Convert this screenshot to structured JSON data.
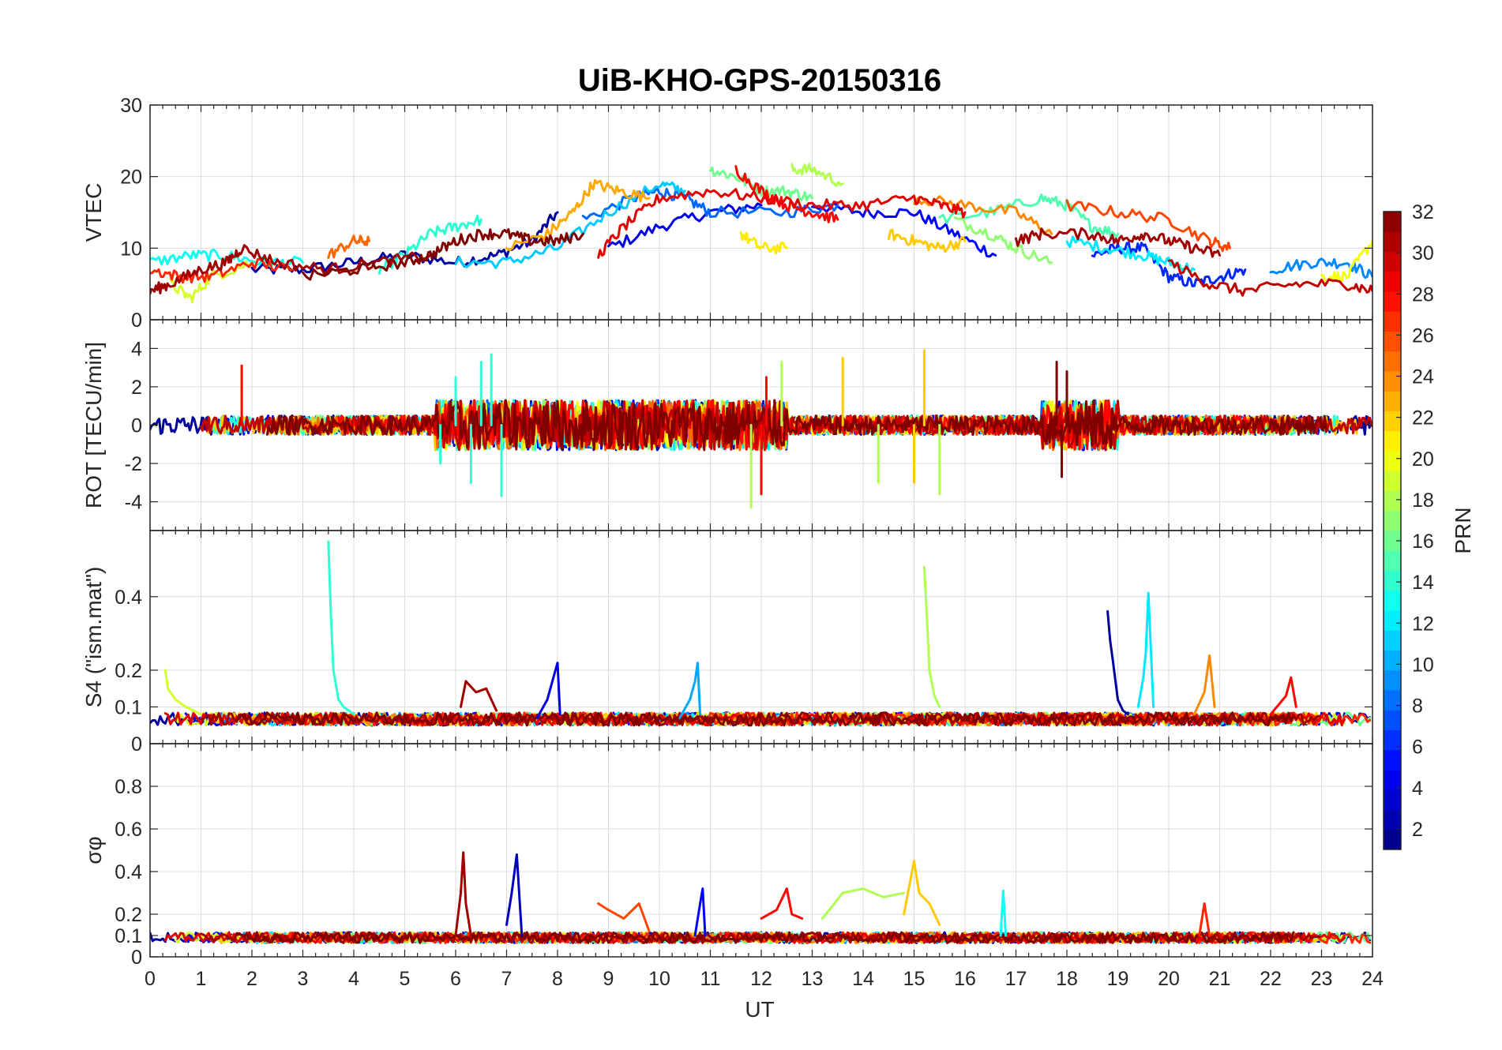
{
  "chart_data": {
    "title": "UiB-KHO-GPS-20150316",
    "xlabel": "UT",
    "x_ticks": [
      0,
      1,
      2,
      3,
      4,
      5,
      6,
      7,
      8,
      9,
      10,
      11,
      12,
      13,
      14,
      15,
      16,
      17,
      18,
      19,
      20,
      21,
      22,
      23,
      24
    ],
    "xlim": [
      0,
      24
    ],
    "grid": true,
    "colorbar": {
      "label": "PRN",
      "range": [
        1,
        32
      ],
      "ticks": [
        2,
        4,
        6,
        8,
        10,
        12,
        14,
        16,
        18,
        20,
        22,
        24,
        26,
        28,
        30,
        32
      ],
      "colormap": "jet",
      "placement": "right"
    },
    "panels": [
      {
        "ylabel": "VTEC",
        "ylim": [
          0,
          30
        ],
        "y_ticks": [
          0,
          10,
          20,
          30
        ],
        "type": "line",
        "series": [
          {
            "prn": 2,
            "x": [
              2.0,
              3.0,
              4.0,
              5.0,
              6.0,
              6.8,
              7.5,
              8.0
            ],
            "y": [
              7,
              7,
              8,
              9,
              8,
              9,
              11,
              15
            ]
          },
          {
            "prn": 4,
            "x": [
              9.0,
              10.0,
              11.0,
              12.0
            ],
            "y": [
              10,
              13,
              15,
              16
            ]
          },
          {
            "prn": 5,
            "x": [
              13.0,
              14.0,
              15.0,
              15.8,
              16.6
            ],
            "y": [
              16,
              15,
              15,
              12,
              9
            ]
          },
          {
            "prn": 6,
            "x": [
              18.5,
              19.0,
              19.5,
              20.0,
              20.5,
              21.0,
              21.5
            ],
            "y": [
              9,
              10,
              10,
              6,
              5,
              6,
              7
            ]
          },
          {
            "prn": 8,
            "x": [
              8.5,
              9.5,
              10.0,
              10.5,
              11.0,
              12.5,
              13.5
            ],
            "y": [
              14,
              17,
              18,
              17,
              15,
              15,
              16
            ]
          },
          {
            "prn": 9,
            "x": [
              22.0,
              22.8,
              23.5,
              24.0
            ],
            "y": [
              7,
              8,
              8,
              6
            ]
          },
          {
            "prn": 11,
            "x": [
              6.0,
              7.0,
              8.0,
              9.0,
              10.0,
              10.5
            ],
            "y": [
              8,
              8,
              10,
              15,
              19,
              18
            ]
          },
          {
            "prn": 12,
            "x": [
              18.0,
              18.8,
              19.5,
              20.0,
              20.5
            ],
            "y": [
              11,
              10,
              9,
              8,
              7
            ]
          },
          {
            "prn": 13,
            "x": [
              0.0,
              0.8,
              1.5,
              2.2,
              3.0
            ],
            "y": [
              8,
              9,
              9,
              8,
              8
            ]
          },
          {
            "prn": 14,
            "x": [
              4.5,
              5.0,
              5.5,
              6.0,
              6.5
            ],
            "y": [
              7,
              9,
              12,
              13,
              14
            ]
          },
          {
            "prn": 15,
            "x": [
              15.5,
              16.5,
              17.5,
              18.0,
              18.5,
              19.0
            ],
            "y": [
              14,
              15,
              17,
              16,
              13,
              12
            ]
          },
          {
            "prn": 16,
            "x": [
              11.0,
              11.5,
              12.0,
              12.5,
              13.0
            ],
            "y": [
              21,
              20,
              18,
              18,
              17
            ]
          },
          {
            "prn": 17,
            "x": [
              15.8,
              16.5,
              17.0,
              17.7
            ],
            "y": [
              14,
              12,
              10,
              8
            ]
          },
          {
            "prn": 18,
            "x": [
              12.6,
              13.0,
              13.6
            ],
            "y": [
              21,
              21,
              19
            ]
          },
          {
            "prn": 19,
            "x": [
              0.4,
              0.8,
              1.2,
              2.0
            ],
            "y": [
              5,
              3,
              6,
              8
            ]
          },
          {
            "prn": 20,
            "x": [
              23.0,
              23.5,
              24.0
            ],
            "y": [
              6,
              6,
              11
            ]
          },
          {
            "prn": 21,
            "x": [
              11.6,
              12.0,
              12.5
            ],
            "y": [
              12,
              10,
              10
            ]
          },
          {
            "prn": 22,
            "x": [
              14.5,
              15.0,
              15.5,
              16.0
            ],
            "y": [
              12,
              11,
              10,
              11
            ]
          },
          {
            "prn": 23,
            "x": [
              7.0,
              7.8,
              8.3,
              8.7,
              9.2,
              9.8
            ],
            "y": [
              10,
              12,
              15,
              19,
              18,
              17
            ]
          },
          {
            "prn": 24,
            "x": [
              15.0,
              16.0,
              17.0,
              17.7
            ],
            "y": [
              17,
              16,
              15,
              12
            ]
          },
          {
            "prn": 25,
            "x": [
              3.5,
              4.0,
              4.3
            ],
            "y": [
              9,
              11,
              11
            ]
          },
          {
            "prn": 26,
            "x": [
              18.0,
              19.0,
              20.0,
              20.8,
              21.2
            ],
            "y": [
              16,
              15,
              14,
              11,
              10
            ]
          },
          {
            "prn": 27,
            "x": [
              0.0,
              0.6,
              1.2,
              2.0,
              2.8
            ],
            "y": [
              7,
              6,
              6,
              8,
              7
            ]
          },
          {
            "prn": 28,
            "x": [
              11.5,
              12.0,
              12.5,
              13.0,
              13.5
            ],
            "y": [
              21,
              18,
              16,
              15,
              14
            ]
          },
          {
            "prn": 29,
            "x": [
              8.8,
              9.3,
              10.0,
              11.0,
              12.0,
              13.0,
              14.0,
              15.0,
              15.5,
              16.0
            ],
            "y": [
              9,
              13,
              17,
              18,
              17,
              16,
              16,
              17,
              16,
              15
            ]
          },
          {
            "prn": 30,
            "x": [
              20.0,
              20.8,
              21.5,
              22.5,
              23.5,
              24.0
            ],
            "y": [
              8,
              5,
              4,
              5,
              5,
              4
            ]
          },
          {
            "prn": 31,
            "x": [
              0.0,
              0.4,
              1.0,
              1.5,
              1.8,
              2.5,
              3.5,
              4.5,
              5.5
            ],
            "y": [
              4,
              5,
              7,
              8,
              10,
              8,
              7,
              8,
              9
            ]
          },
          {
            "prn": 32,
            "x": [
              3.0,
              4.0,
              5.0,
              5.5,
              6.0,
              6.5,
              7.0,
              7.5,
              8.0,
              8.5
            ],
            "y": [
              6,
              7,
              8,
              9,
              11,
              12,
              12,
              11,
              11,
              12
            ]
          },
          {
            "prn": 31,
            "x": [
              17.0,
              17.5,
              18.5,
              19.0,
              19.5,
              20.0,
              20.5,
              21.0
            ],
            "y": [
              11,
              12,
              12,
              11,
              12,
              11,
              10,
              9
            ]
          }
        ]
      },
      {
        "ylabel": "ROT [TECU/min]",
        "ylim": [
          -5.5,
          5.5
        ],
        "y_ticks": [
          -4,
          -2,
          0,
          2,
          4
        ],
        "type": "line",
        "note_prn_spikes": [
          {
            "prn": 14,
            "x": [
              5.7,
              6.0,
              6.3,
              6.5,
              6.7,
              6.9
            ],
            "y": [
              -2,
              2.5,
              -3,
              3.3,
              3.7,
              -3.7
            ]
          },
          {
            "prn": 18,
            "x": [
              11.8,
              12.4,
              14.3,
              15.2,
              15.5
            ],
            "y": [
              -4.3,
              3.3,
              -3,
              3.8,
              -3.6
            ]
          },
          {
            "prn": 28,
            "x": [
              1.8,
              12.0,
              12.1
            ],
            "y": [
              3.1,
              -3.6,
              2.5
            ]
          },
          {
            "prn": 32,
            "x": [
              17.8,
              17.9,
              18.0
            ],
            "y": [
              3.3,
              -2.7,
              2.8
            ]
          },
          {
            "prn": 22,
            "x": [
              13.6,
              15.0,
              15.2
            ],
            "y": [
              3.5,
              -3,
              3.9
            ]
          }
        ]
      },
      {
        "ylabel": "S4 (\"ism.mat\")",
        "ylim": [
          0,
          0.58
        ],
        "y_ticks": [
          0,
          0.1,
          0.2,
          0.4
        ],
        "type": "line",
        "spikes": [
          {
            "prn": 14,
            "x": [
              3.5,
              3.55,
              3.6,
              3.7,
              3.8,
              4.0
            ],
            "y": [
              0.55,
              0.35,
              0.2,
              0.12,
              0.1,
              0.08
            ]
          },
          {
            "prn": 18,
            "x": [
              15.2,
              15.25,
              15.3,
              15.4,
              15.5
            ],
            "y": [
              0.48,
              0.35,
              0.2,
              0.13,
              0.1
            ]
          },
          {
            "prn": 2,
            "x": [
              18.8,
              18.85,
              18.9,
              19.0,
              19.1,
              19.2
            ],
            "y": [
              0.36,
              0.28,
              0.23,
              0.12,
              0.09,
              0.08
            ]
          },
          {
            "prn": 12,
            "x": [
              19.4,
              19.5,
              19.55,
              19.6,
              19.7
            ],
            "y": [
              0.1,
              0.18,
              0.25,
              0.41,
              0.1
            ]
          },
          {
            "prn": 10,
            "x": [
              10.4,
              10.6,
              10.7,
              10.75,
              10.8
            ],
            "y": [
              0.07,
              0.12,
              0.17,
              0.22,
              0.08
            ]
          },
          {
            "prn": 4,
            "x": [
              7.6,
              7.8,
              7.9,
              8.0,
              8.05
            ],
            "y": [
              0.07,
              0.12,
              0.17,
              0.22,
              0.08
            ]
          },
          {
            "prn": 24,
            "x": [
              20.5,
              20.7,
              20.8,
              20.9
            ],
            "y": [
              0.08,
              0.14,
              0.24,
              0.1
            ]
          },
          {
            "prn": 28,
            "x": [
              22.0,
              22.3,
              22.4,
              22.5
            ],
            "y": [
              0.08,
              0.13,
              0.18,
              0.1
            ]
          },
          {
            "prn": 31,
            "x": [
              6.1,
              6.2,
              6.4,
              6.6,
              6.8
            ],
            "y": [
              0.1,
              0.17,
              0.14,
              0.15,
              0.09
            ]
          },
          {
            "prn": 19,
            "x": [
              0.3,
              0.35,
              0.5,
              0.7,
              1.0
            ],
            "y": [
              0.2,
              0.15,
              0.12,
              0.1,
              0.08
            ]
          }
        ]
      },
      {
        "ylabel": "σφ",
        "ylim": [
          0,
          1
        ],
        "y_ticks": [
          0,
          0.1,
          0.2,
          0.4,
          0.6,
          0.8
        ],
        "type": "line",
        "spikes": [
          {
            "prn": 31,
            "x": [
              6.0,
              6.1,
              6.15,
              6.2,
              6.3
            ],
            "y": [
              0.1,
              0.3,
              0.49,
              0.25,
              0.1
            ]
          },
          {
            "prn": 3,
            "x": [
              7.0,
              7.1,
              7.2,
              7.3
            ],
            "y": [
              0.15,
              0.3,
              0.48,
              0.1
            ]
          },
          {
            "prn": 22,
            "x": [
              14.8,
              15.0,
              15.1,
              15.3,
              15.5
            ],
            "y": [
              0.2,
              0.45,
              0.3,
              0.25,
              0.15
            ]
          },
          {
            "prn": 18,
            "x": [
              13.2,
              13.6,
              14.0,
              14.4,
              14.8
            ],
            "y": [
              0.18,
              0.3,
              0.32,
              0.28,
              0.3
            ]
          },
          {
            "prn": 28,
            "x": [
              12.0,
              12.3,
              12.5,
              12.6,
              12.8
            ],
            "y": [
              0.18,
              0.22,
              0.32,
              0.2,
              0.18
            ]
          },
          {
            "prn": 5,
            "x": [
              10.7,
              10.8,
              10.85,
              10.9
            ],
            "y": [
              0.1,
              0.25,
              0.32,
              0.1
            ]
          },
          {
            "prn": 26,
            "x": [
              8.8,
              9.0,
              9.3,
              9.6,
              9.8
            ],
            "y": [
              0.25,
              0.22,
              0.18,
              0.25,
              0.12
            ]
          },
          {
            "prn": 13,
            "x": [
              16.7,
              16.75,
              16.8
            ],
            "y": [
              0.1,
              0.31,
              0.1
            ]
          },
          {
            "prn": 27,
            "x": [
              20.6,
              20.7,
              20.8
            ],
            "y": [
              0.1,
              0.25,
              0.1
            ]
          }
        ]
      }
    ]
  }
}
